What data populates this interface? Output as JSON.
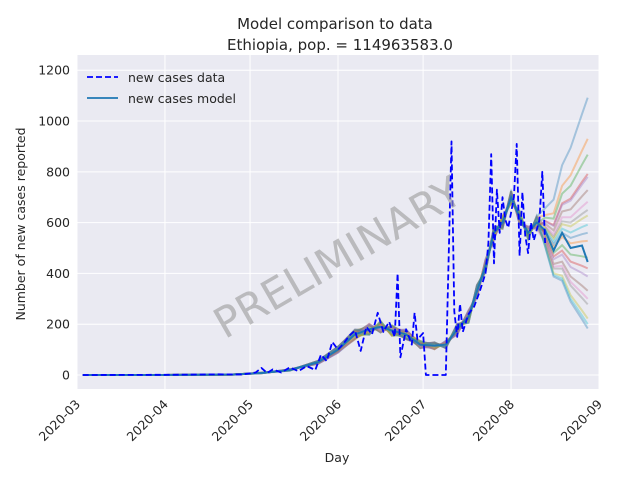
{
  "chart_data": {
    "type": "line",
    "title_line1": "Model comparison to data",
    "title_line2": "Ethiopia, pop. = 114963583.0",
    "xlabel": "Day",
    "ylabel": "Number of new cases reported",
    "xlim": [
      "2020-03-01",
      "2020-09-01"
    ],
    "ylim": [
      -55,
      1260
    ],
    "xticks": [
      "2020-03",
      "2020-04",
      "2020-05",
      "2020-06",
      "2020-07",
      "2020-08",
      "2020-09"
    ],
    "yticks": [
      0,
      200,
      400,
      600,
      800,
      1000,
      1200
    ],
    "grid": true,
    "legend": {
      "placement": "top-left",
      "entries": [
        "new cases data",
        "new cases model"
      ]
    },
    "watermark": "PRELIMINARY",
    "colors": {
      "background": "#eaeaf2",
      "grid": "#ffffff",
      "data": "#0000ff",
      "model": "#1f77b4"
    },
    "series": [
      {
        "name": "new cases data",
        "style": "dashed",
        "points": [
          [
            "2020-03-03",
            0
          ],
          [
            "2020-04-01",
            1
          ],
          [
            "2020-04-20",
            3
          ],
          [
            "2020-04-28",
            2
          ],
          [
            "2020-05-03",
            10
          ],
          [
            "2020-05-05",
            28
          ],
          [
            "2020-05-07",
            8
          ],
          [
            "2020-05-09",
            22
          ],
          [
            "2020-05-12",
            10
          ],
          [
            "2020-05-15",
            30
          ],
          [
            "2020-05-18",
            15
          ],
          [
            "2020-05-21",
            35
          ],
          [
            "2020-05-24",
            20
          ],
          [
            "2020-05-26",
            80
          ],
          [
            "2020-05-28",
            55
          ],
          [
            "2020-05-30",
            130
          ],
          [
            "2020-06-01",
            100
          ],
          [
            "2020-06-03",
            125
          ],
          [
            "2020-06-05",
            155
          ],
          [
            "2020-06-07",
            175
          ],
          [
            "2020-06-09",
            95
          ],
          [
            "2020-06-11",
            190
          ],
          [
            "2020-06-13",
            160
          ],
          [
            "2020-06-15",
            245
          ],
          [
            "2020-06-17",
            170
          ],
          [
            "2020-06-19",
            210
          ],
          [
            "2020-06-21",
            150
          ],
          [
            "2020-06-22",
            400
          ],
          [
            "2020-06-23",
            70
          ],
          [
            "2020-06-25",
            180
          ],
          [
            "2020-06-27",
            120
          ],
          [
            "2020-06-28",
            245
          ],
          [
            "2020-06-29",
            140
          ],
          [
            "2020-07-01",
            165
          ],
          [
            "2020-07-02",
            0
          ],
          [
            "2020-07-09",
            0
          ],
          [
            "2020-07-11",
            920
          ],
          [
            "2020-07-12",
            250
          ],
          [
            "2020-07-13",
            150
          ],
          [
            "2020-07-14",
            280
          ],
          [
            "2020-07-15",
            170
          ],
          [
            "2020-07-17",
            240
          ],
          [
            "2020-07-19",
            270
          ],
          [
            "2020-07-21",
            330
          ],
          [
            "2020-07-23",
            400
          ],
          [
            "2020-07-24",
            520
          ],
          [
            "2020-07-25",
            870
          ],
          [
            "2020-07-26",
            440
          ],
          [
            "2020-07-27",
            730
          ],
          [
            "2020-07-28",
            560
          ],
          [
            "2020-07-29",
            700
          ],
          [
            "2020-07-30",
            610
          ],
          [
            "2020-07-31",
            580
          ],
          [
            "2020-08-01",
            640
          ],
          [
            "2020-08-02",
            700
          ],
          [
            "2020-08-03",
            910
          ],
          [
            "2020-08-04",
            470
          ],
          [
            "2020-08-05",
            720
          ],
          [
            "2020-08-06",
            550
          ],
          [
            "2020-08-07",
            480
          ],
          [
            "2020-08-08",
            600
          ],
          [
            "2020-08-09",
            530
          ],
          [
            "2020-08-10",
            570
          ],
          [
            "2020-08-11",
            610
          ],
          [
            "2020-08-12",
            800
          ],
          [
            "2020-08-13",
            520
          ]
        ]
      },
      {
        "name": "new cases model",
        "style": "solid",
        "points": [
          [
            "2020-03-03",
            0
          ],
          [
            "2020-04-01",
            0
          ],
          [
            "2020-04-25",
            2
          ],
          [
            "2020-05-05",
            8
          ],
          [
            "2020-05-15",
            20
          ],
          [
            "2020-05-25",
            50
          ],
          [
            "2020-06-01",
            100
          ],
          [
            "2020-06-07",
            160
          ],
          [
            "2020-06-12",
            180
          ],
          [
            "2020-06-16",
            190
          ],
          [
            "2020-06-20",
            175
          ],
          [
            "2020-06-25",
            160
          ],
          [
            "2020-06-30",
            120
          ],
          [
            "2020-07-05",
            115
          ],
          [
            "2020-07-09",
            120
          ],
          [
            "2020-07-13",
            180
          ],
          [
            "2020-07-17",
            230
          ],
          [
            "2020-07-20",
            330
          ],
          [
            "2020-07-23",
            430
          ],
          [
            "2020-07-26",
            560
          ],
          [
            "2020-07-29",
            600
          ],
          [
            "2020-08-01",
            700
          ],
          [
            "2020-08-04",
            620
          ],
          [
            "2020-08-07",
            560
          ],
          [
            "2020-08-10",
            600
          ],
          [
            "2020-08-13",
            570
          ],
          [
            "2020-08-16",
            490
          ],
          [
            "2020-08-19",
            560
          ],
          [
            "2020-08-22",
            500
          ],
          [
            "2020-08-26",
            510
          ],
          [
            "2020-08-28",
            445
          ]
        ]
      }
    ],
    "ensemble_endpoints": [
      1100,
      930,
      860,
      800,
      780,
      720,
      690,
      650,
      620,
      600,
      560,
      520,
      470,
      420,
      380,
      340,
      300,
      270,
      230,
      200,
      175
    ]
  }
}
